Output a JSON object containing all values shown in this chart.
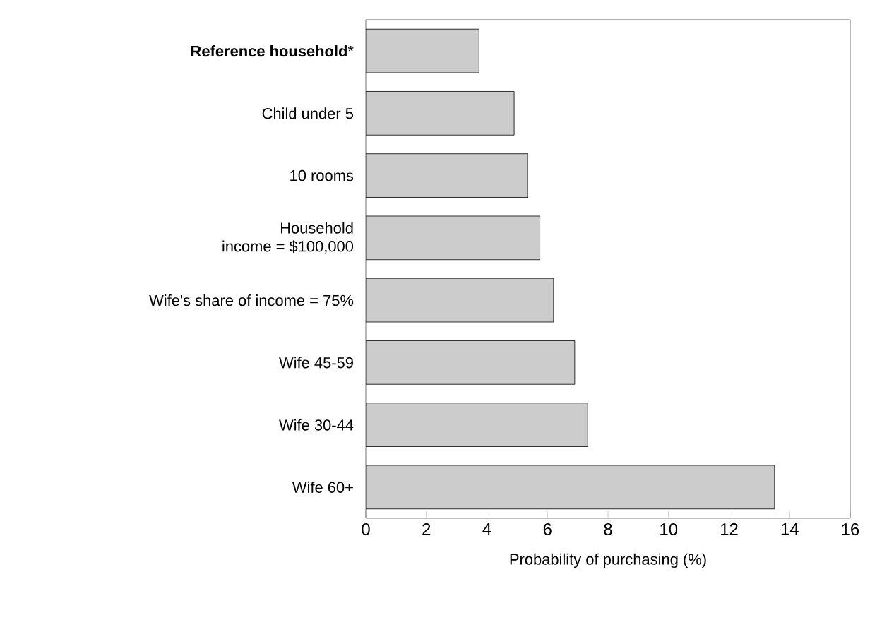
{
  "chart_data": {
    "type": "bar",
    "orientation": "horizontal",
    "categories": [
      "**Reference household***",
      "Child under 5",
      "10 rooms",
      "Household\nincome = $100,000",
      "Wife's share of income = 75%",
      "Wife 45-59",
      "Wife 30-44",
      "Wife 60+"
    ],
    "values": [
      3.74,
      4.9,
      5.34,
      5.75,
      6.2,
      6.9,
      7.33,
      13.5
    ],
    "color": "#cccccc",
    "xlim": [
      0,
      16
    ],
    "xticks": [
      0,
      2,
      4,
      6,
      8,
      10,
      12,
      14,
      16
    ],
    "xlabel": "Probability of purchasing (%)"
  }
}
